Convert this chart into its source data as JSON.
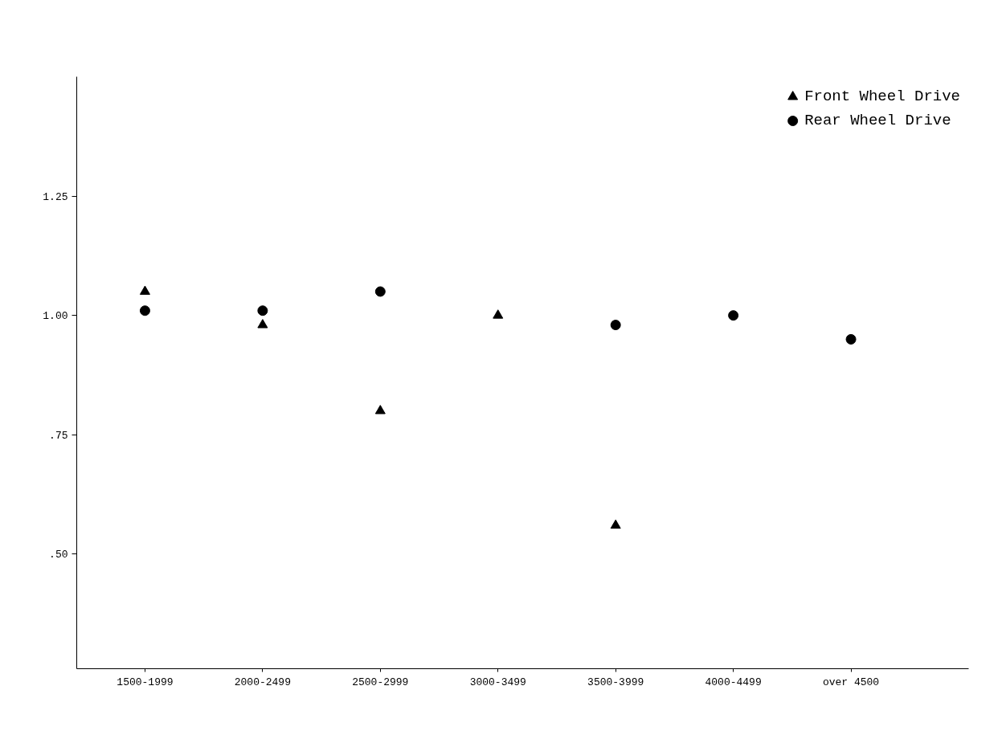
{
  "chart_data": {
    "type": "scatter",
    "categories": [
      "1500-1999",
      "2000-2499",
      "2500-2999",
      "3000-3499",
      "3500-3999",
      "4000-4499",
      "over 4500"
    ],
    "series": [
      {
        "name": "Front Wheel Drive",
        "color": "#000000",
        "marker": "triangle",
        "values": [
          1.05,
          0.98,
          0.8,
          1.0,
          0.56,
          null,
          null
        ]
      },
      {
        "name": "Rear Wheel Drive",
        "color": "#000000",
        "marker": "circle",
        "values": [
          1.01,
          1.01,
          1.05,
          null,
          0.98,
          1.0,
          0.95
        ]
      }
    ],
    "ylim": [
      0.26,
      1.5
    ],
    "yticks": [
      {
        "value": 0.5,
        "label": ".50"
      },
      {
        "value": 0.75,
        "label": ".75"
      },
      {
        "value": 1.0,
        "label": "1.00"
      },
      {
        "value": 1.25,
        "label": "1.25"
      }
    ],
    "grid": false,
    "legend": "top right"
  }
}
